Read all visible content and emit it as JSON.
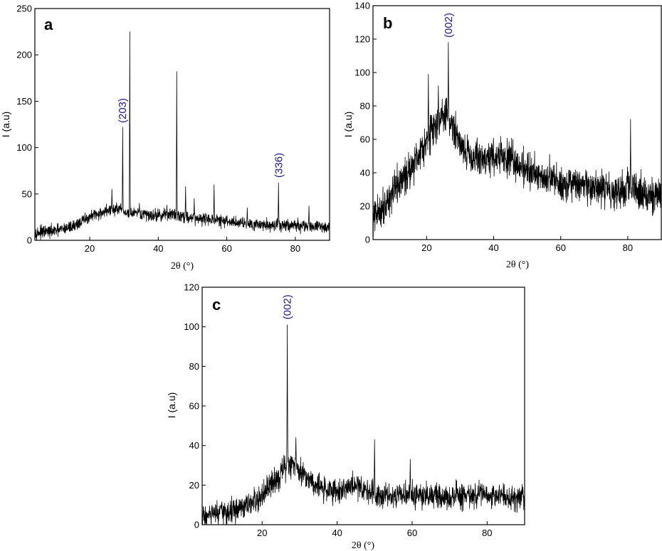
{
  "chart_data": [
    {
      "type": "line",
      "panel": "a",
      "xlabel": "2θ (°)",
      "ylabel": "I (a.u)",
      "xlim": [
        4,
        90
      ],
      "ylim": [
        0,
        250
      ],
      "xticks": [
        20,
        40,
        60,
        80
      ],
      "yticks": [
        0,
        50,
        100,
        150,
        200,
        250
      ],
      "grid": false,
      "legend": "none",
      "line_color": "#000000",
      "annotation_color": "#1a1a8c",
      "series": [
        {
          "baseline": [
            [
              4,
              8
            ],
            [
              10,
              10
            ],
            [
              15,
              15
            ],
            [
              20,
              25
            ],
            [
              25,
              32
            ],
            [
              28,
              34
            ],
            [
              30,
              30
            ],
            [
              35,
              28
            ],
            [
              40,
              27
            ],
            [
              45,
              28
            ],
            [
              50,
              24
            ],
            [
              55,
              23
            ],
            [
              60,
              20
            ],
            [
              65,
              19
            ],
            [
              70,
              17
            ],
            [
              75,
              16
            ],
            [
              80,
              16
            ],
            [
              85,
              15
            ],
            [
              90,
              14
            ]
          ],
          "noise": 6,
          "peaks": [
            [
              26.5,
              55
            ],
            [
              29.6,
              122
            ],
            [
              31.7,
              225
            ],
            [
              34.5,
              40
            ],
            [
              42.5,
              38
            ],
            [
              45.4,
              182
            ],
            [
              48,
              58
            ],
            [
              50.5,
              45
            ],
            [
              56.3,
              60
            ],
            [
              66,
              35
            ],
            [
              75.1,
              62
            ],
            [
              84,
              37
            ]
          ]
        }
      ],
      "annotations": [
        {
          "text": "(203)",
          "x": 29.6,
          "y": 125
        },
        {
          "text": "(336)",
          "x": 75.1,
          "y": 66
        }
      ]
    },
    {
      "type": "line",
      "panel": "b",
      "xlabel": "2θ (°)",
      "ylabel": "I (a.u)",
      "xlim": [
        4,
        90
      ],
      "ylim": [
        0,
        140
      ],
      "xticks": [
        20,
        40,
        60,
        80
      ],
      "yticks": [
        0,
        20,
        40,
        60,
        80,
        100,
        120,
        140
      ],
      "grid": false,
      "legend": "none",
      "line_color": "#000000",
      "annotation_color": "#1a1a8c",
      "series": [
        {
          "baseline": [
            [
              4,
              12
            ],
            [
              10,
              28
            ],
            [
              15,
              42
            ],
            [
              20,
              60
            ],
            [
              24,
              72
            ],
            [
              26,
              75
            ],
            [
              28,
              66
            ],
            [
              32,
              52
            ],
            [
              36,
              48
            ],
            [
              40,
              50
            ],
            [
              45,
              48
            ],
            [
              50,
              42
            ],
            [
              55,
              38
            ],
            [
              60,
              34
            ],
            [
              65,
              32
            ],
            [
              70,
              30
            ],
            [
              75,
              30
            ],
            [
              80,
              30
            ],
            [
              85,
              28
            ],
            [
              90,
              26
            ]
          ],
          "noise": 10,
          "peaks": [
            [
              20.5,
              99
            ],
            [
              23.5,
              92
            ],
            [
              26.5,
              118
            ],
            [
              80.8,
              72
            ]
          ]
        }
      ],
      "annotations": [
        {
          "text": "(002)",
          "x": 26.5,
          "y": 120
        }
      ]
    },
    {
      "type": "line",
      "panel": "c",
      "xlabel": "2θ (°)",
      "ylabel": "I (a.u)",
      "xlim": [
        4,
        90
      ],
      "ylim": [
        0,
        120
      ],
      "xticks": [
        20,
        40,
        60,
        80
      ],
      "yticks": [
        0,
        20,
        40,
        60,
        80,
        100,
        120
      ],
      "grid": false,
      "legend": "none",
      "line_color": "#000000",
      "annotation_color": "#1a1a8c",
      "series": [
        {
          "baseline": [
            [
              4,
              4
            ],
            [
              10,
              6
            ],
            [
              15,
              8
            ],
            [
              20,
              14
            ],
            [
              24,
              24
            ],
            [
              27,
              30
            ],
            [
              29,
              30
            ],
            [
              32,
              24
            ],
            [
              36,
              18
            ],
            [
              40,
              17
            ],
            [
              45,
              20
            ],
            [
              50,
              16
            ],
            [
              55,
              15
            ],
            [
              60,
              15
            ],
            [
              70,
              14
            ],
            [
              80,
              15
            ],
            [
              90,
              14
            ]
          ],
          "noise": 6,
          "peaks": [
            [
              26.7,
              101
            ],
            [
              29,
              44
            ],
            [
              50,
              43
            ],
            [
              59.5,
              33
            ]
          ]
        }
      ],
      "annotations": [
        {
          "text": "(002)",
          "x": 26.7,
          "y": 103
        }
      ]
    }
  ]
}
